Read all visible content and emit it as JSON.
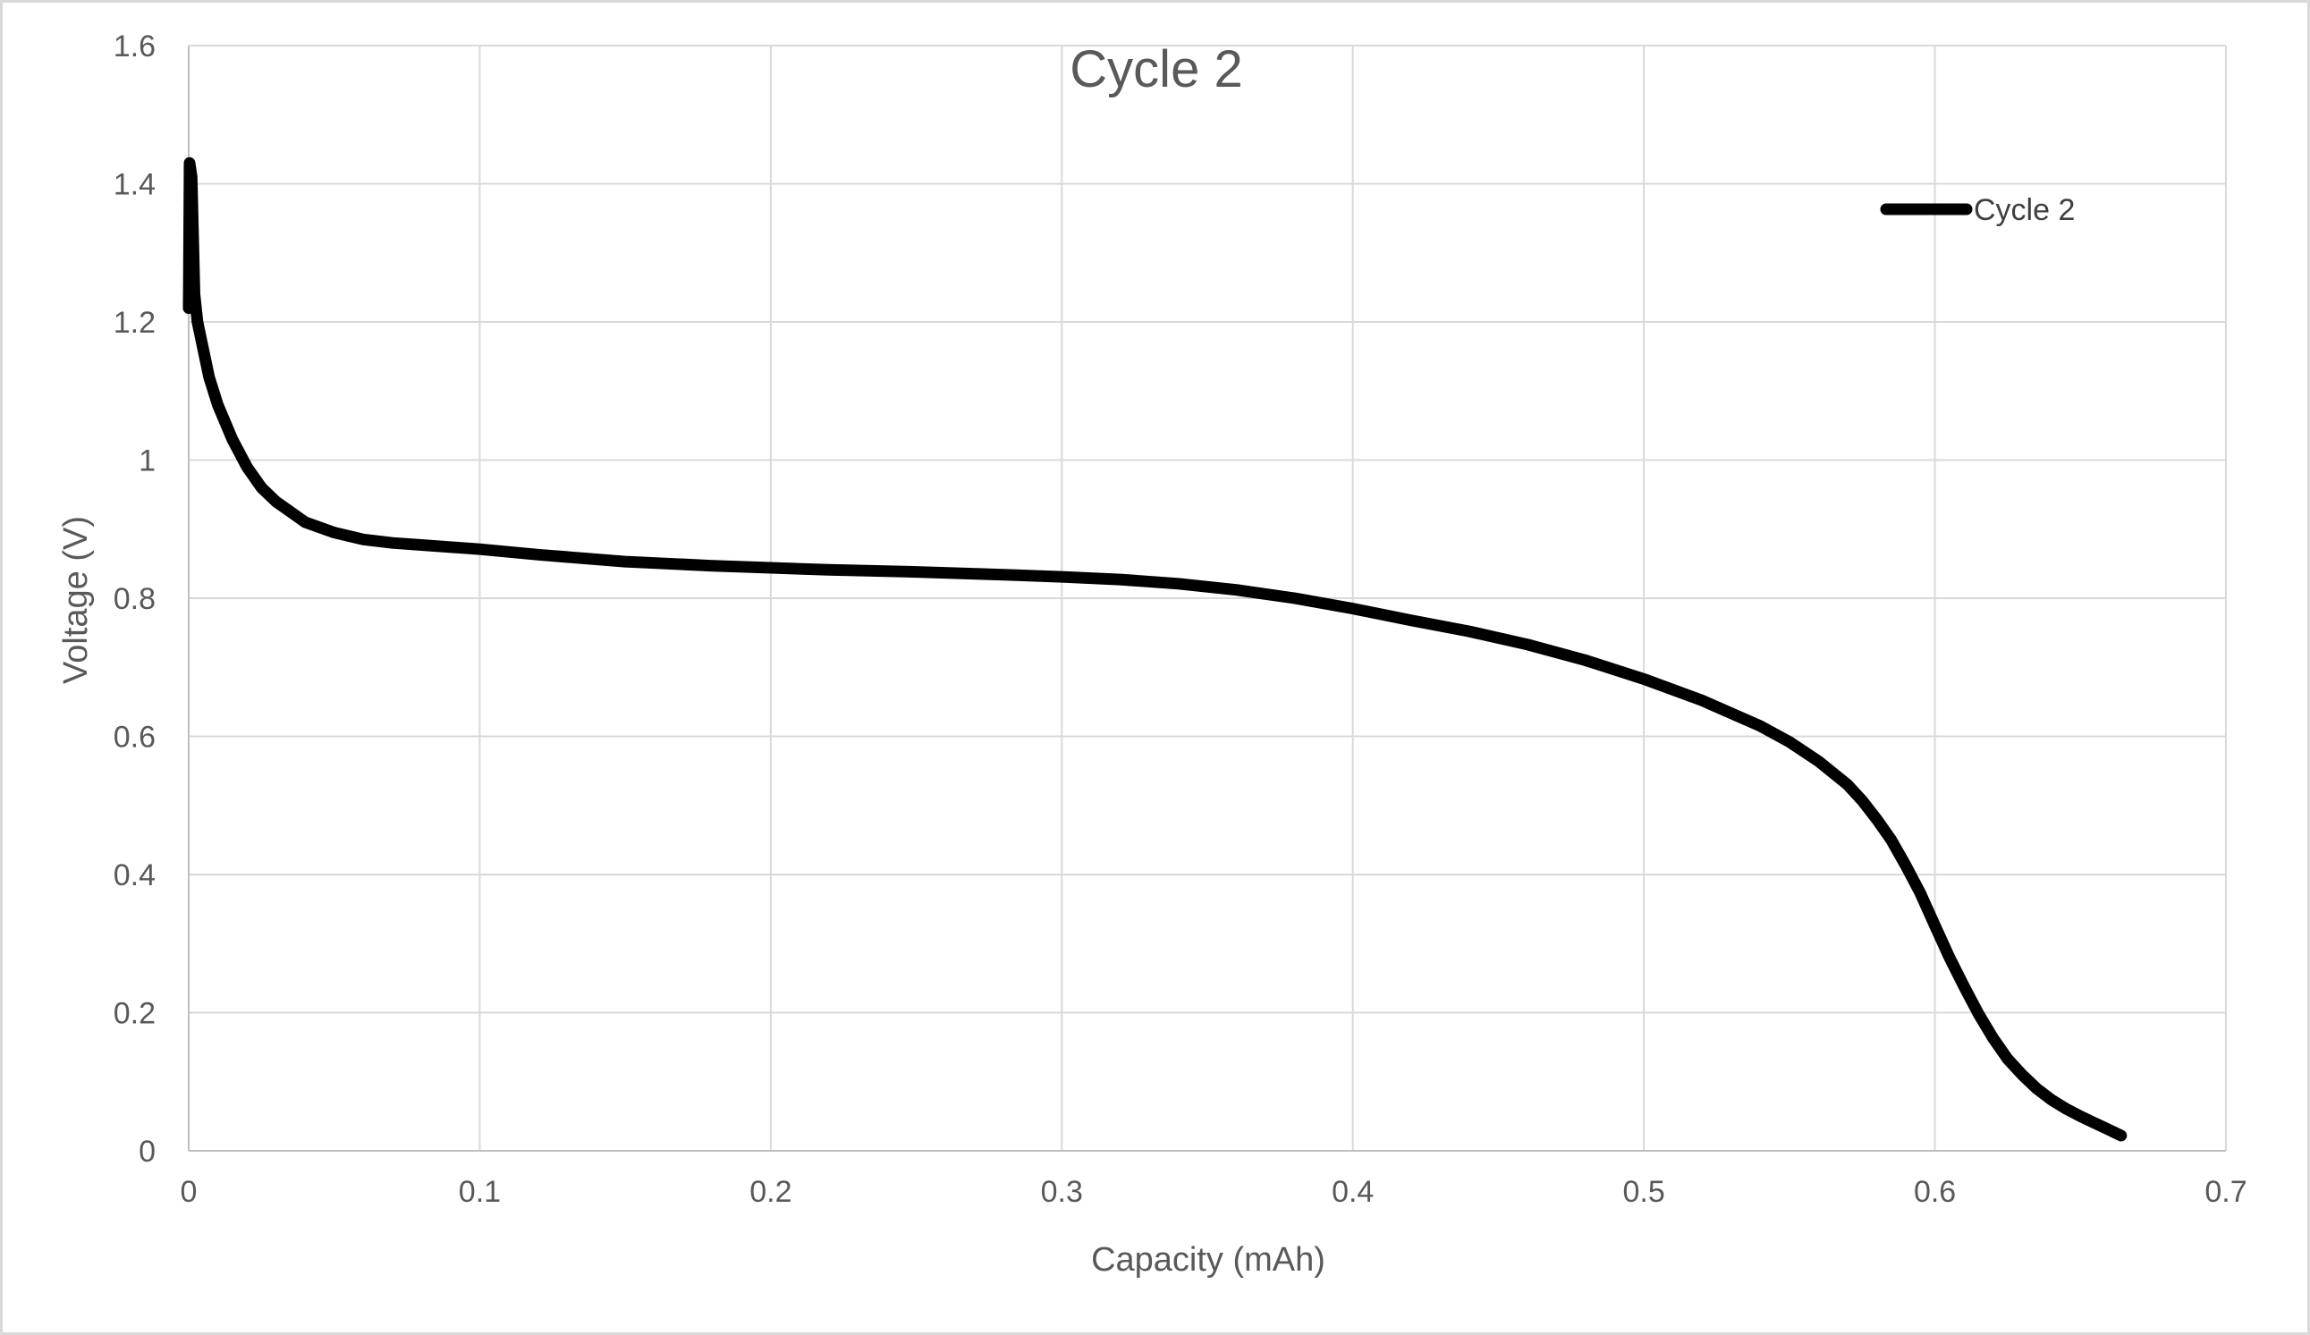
{
  "chart_data": {
    "type": "line",
    "title": "Cycle 2",
    "xlabel": "Capacity (mAh)",
    "ylabel": "Voltage (V)",
    "xlim": [
      0,
      0.7
    ],
    "ylim": [
      0,
      1.6
    ],
    "x_ticks": [
      0,
      0.1,
      0.2,
      0.3,
      0.4,
      0.5,
      0.6,
      0.7
    ],
    "x_tick_labels": [
      "0",
      "0.1",
      "0.2",
      "0.3",
      "0.4",
      "0.5",
      "0.6",
      "0.7"
    ],
    "y_ticks": [
      0,
      0.2,
      0.4,
      0.6,
      0.8,
      1.0,
      1.2,
      1.4,
      1.6
    ],
    "y_tick_labels": [
      "0",
      "0.2",
      "0.4",
      "0.6",
      "0.8",
      "1",
      "1.2",
      "1.4",
      "1.6"
    ],
    "grid": true,
    "legend_position": "top-right",
    "series": [
      {
        "name": "Cycle 2",
        "color": "#000000",
        "x": [
          0,
          0.0003,
          0.001,
          0.002,
          0.003,
          0.005,
          0.007,
          0.01,
          0.015,
          0.02,
          0.025,
          0.03,
          0.035,
          0.04,
          0.05,
          0.06,
          0.07,
          0.08,
          0.1,
          0.12,
          0.15,
          0.18,
          0.2,
          0.22,
          0.25,
          0.28,
          0.3,
          0.32,
          0.34,
          0.36,
          0.38,
          0.4,
          0.42,
          0.44,
          0.46,
          0.48,
          0.5,
          0.52,
          0.54,
          0.55,
          0.56,
          0.57,
          0.575,
          0.58,
          0.585,
          0.59,
          0.595,
          0.6,
          0.605,
          0.61,
          0.615,
          0.62,
          0.625,
          0.63,
          0.635,
          0.64,
          0.645,
          0.65,
          0.655,
          0.66,
          0.664
        ],
        "y": [
          1.22,
          1.43,
          1.41,
          1.24,
          1.2,
          1.16,
          1.12,
          1.08,
          1.03,
          0.99,
          0.96,
          0.94,
          0.925,
          0.91,
          0.895,
          0.885,
          0.88,
          0.877,
          0.871,
          0.863,
          0.853,
          0.847,
          0.844,
          0.841,
          0.838,
          0.834,
          0.831,
          0.827,
          0.821,
          0.812,
          0.8,
          0.785,
          0.768,
          0.752,
          0.733,
          0.71,
          0.683,
          0.652,
          0.615,
          0.592,
          0.564,
          0.53,
          0.507,
          0.48,
          0.45,
          0.413,
          0.373,
          0.326,
          0.28,
          0.238,
          0.198,
          0.163,
          0.133,
          0.11,
          0.09,
          0.074,
          0.061,
          0.05,
          0.04,
          0.03,
          0.022
        ]
      }
    ]
  }
}
